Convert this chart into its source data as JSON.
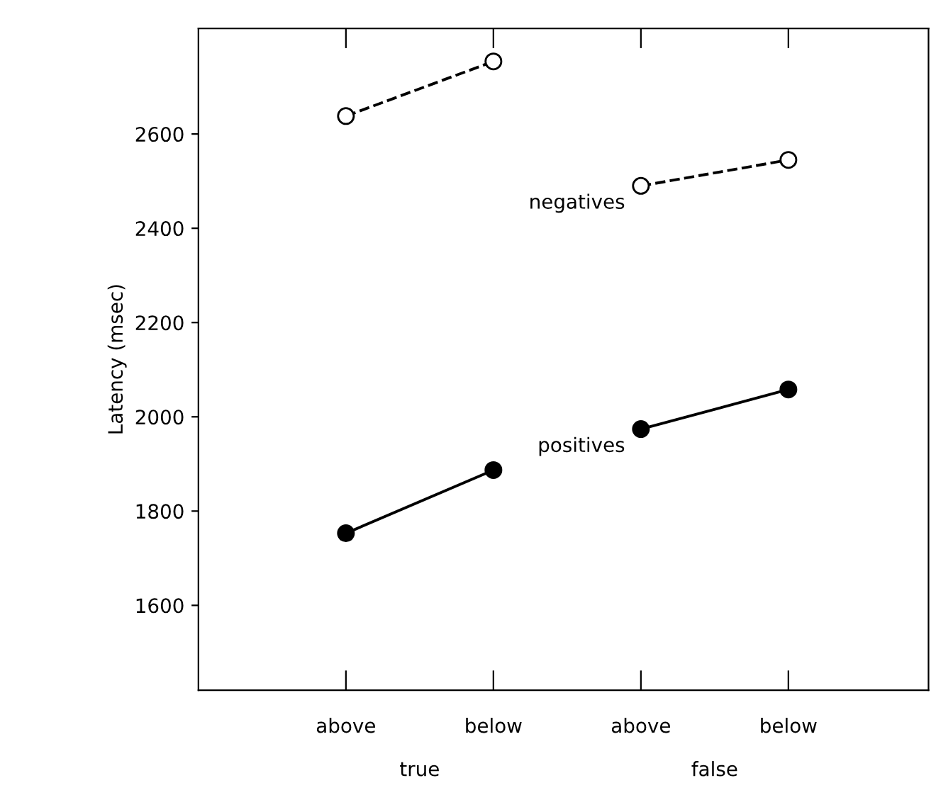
{
  "chart_data": {
    "type": "line",
    "ylabel": "Latency (msec)",
    "categories": [
      "above",
      "below",
      "above",
      "below"
    ],
    "series": [
      {
        "name": "negatives",
        "color": "#000000",
        "values": [
          2638,
          2754,
          2490,
          2545
        ],
        "line_style": "dashed"
      },
      {
        "name": "positives",
        "color": "#000000",
        "values": [
          1753,
          1887,
          1974,
          2058
        ],
        "line_style": "solid"
      }
    ],
    "annotations": [
      "true",
      "false"
    ],
    "marker": "circle",
    "ylim": [
      1420,
      2824
    ],
    "yticks": [
      1600,
      1800,
      2000,
      2200,
      2400,
      2600
    ],
    "grid": false,
    "legend": false
  }
}
